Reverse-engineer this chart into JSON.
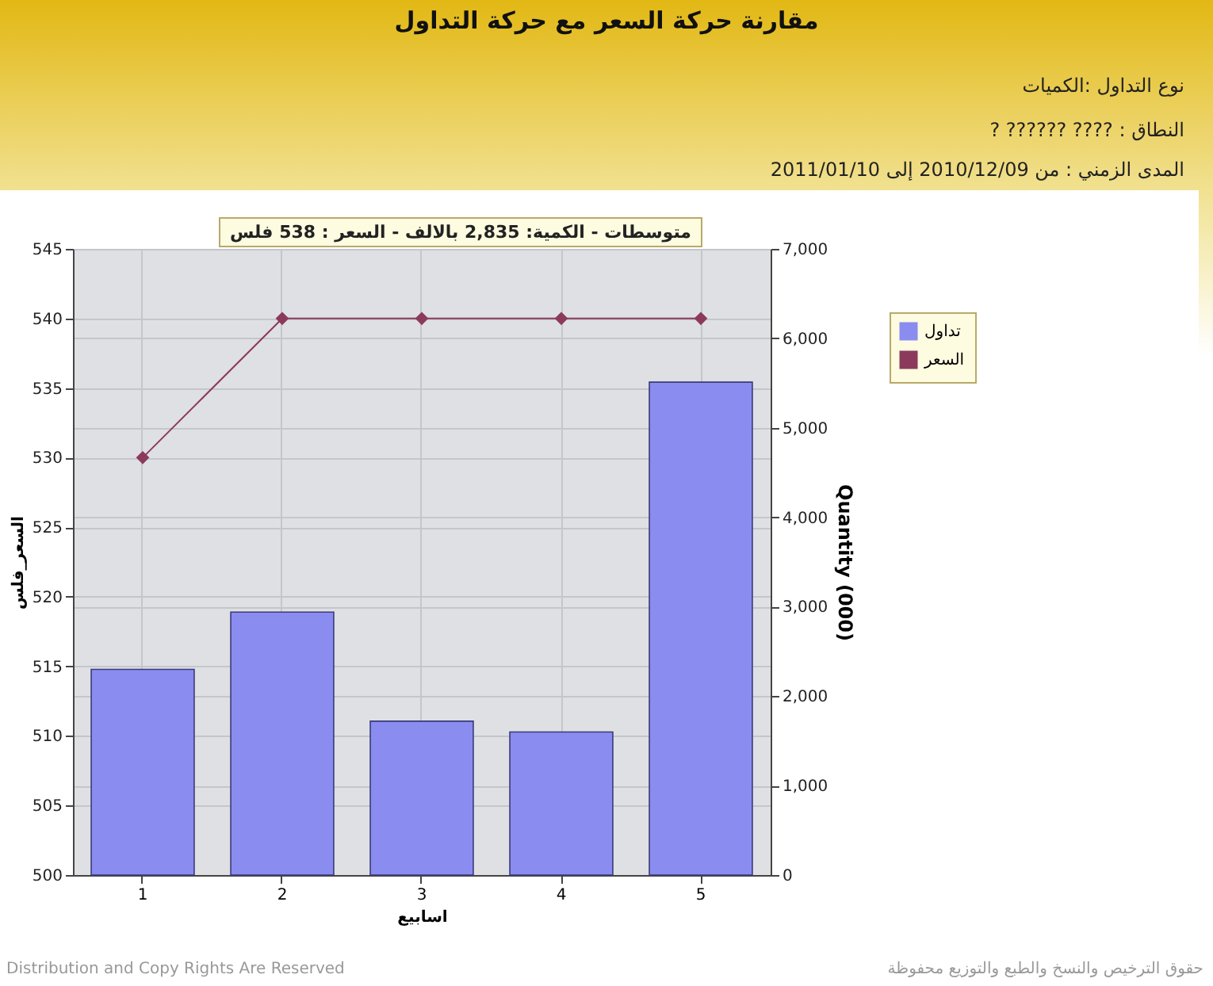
{
  "chart_data": {
    "type": "bar",
    "title": "مقارنة حركة السعر مع حركة التداول",
    "xlabel": "اسابيع",
    "ylabel": "السعر_فلس",
    "y2label": "Quantity (000)",
    "categories": [
      "1",
      "2",
      "3",
      "4",
      "5"
    ],
    "series": [
      {
        "name": "تداول",
        "axis": "y2",
        "color": "#8a8cf0",
        "values": [
          2300,
          2940,
          1720,
          1600,
          5510
        ]
      },
      {
        "name": "السعر",
        "type": "line",
        "axis": "y",
        "color": "#8b3a5c",
        "values": [
          530,
          540,
          540,
          540,
          540
        ]
      }
    ],
    "ylim": [
      500,
      545
    ],
    "yticks": [
      500,
      505,
      510,
      515,
      520,
      525,
      530,
      535,
      540,
      545
    ],
    "y2lim": [
      0,
      7000
    ],
    "y2ticks": [
      0,
      {
        "value": 1000,
        "label": "1,000"
      },
      {
        "value": 2000,
        "label": "2,000"
      },
      {
        "value": 3000,
        "label": "3,000"
      },
      {
        "value": 4000,
        "label": "4,000"
      },
      {
        "value": 5000,
        "label": "5,000"
      },
      {
        "value": 6000,
        "label": "6,000"
      },
      {
        "value": 7000,
        "label": "7,000"
      }
    ],
    "grid": true,
    "legend": "top right",
    "marker": "diamond",
    "line_style": "solid",
    "annotations": [
      "نوع التداول :الكميات",
      "النطاق : ???? ?????? ?",
      "المدى الزمني : من 2010/12/09 إلى 2011/01/10",
      "متوسطات - الكمية: 2,835 بالالف - السعر : 538 فلس",
      "Distribution and Copy Rights Are Reserved",
      "حقوق الترخيص والنسخ والطبع والتوزيع محفوظة"
    ]
  }
}
